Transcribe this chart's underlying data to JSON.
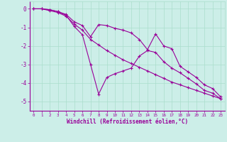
{
  "xlabel": "Windchill (Refroidissement éolien,°C)",
  "bg_color": "#cceee8",
  "grid_color": "#aaddcc",
  "line_color": "#990099",
  "xlim": [
    -0.5,
    23.5
  ],
  "ylim": [
    -5.5,
    0.4
  ],
  "xticks": [
    0,
    1,
    2,
    3,
    4,
    5,
    6,
    7,
    8,
    9,
    10,
    11,
    12,
    13,
    14,
    15,
    16,
    17,
    18,
    19,
    20,
    21,
    22,
    23
  ],
  "yticks": [
    0,
    -1,
    -2,
    -3,
    -4,
    -5
  ],
  "line1_x": [
    0,
    1,
    2,
    3,
    4,
    5,
    6,
    7,
    8,
    9,
    10,
    11,
    12,
    13,
    14,
    15,
    16,
    17,
    18,
    19,
    20,
    21,
    22,
    23
  ],
  "line1_y": [
    0.0,
    0.0,
    -0.05,
    -0.15,
    -0.3,
    -0.7,
    -0.9,
    -1.5,
    -0.85,
    -0.9,
    -1.05,
    -1.15,
    -1.3,
    -1.65,
    -2.2,
    -1.35,
    -2.0,
    -2.15,
    -3.1,
    -3.4,
    -3.7,
    -4.1,
    -4.3,
    -4.75
  ],
  "line2_x": [
    0,
    1,
    2,
    3,
    4,
    5,
    6,
    7,
    8,
    9,
    10,
    11,
    12,
    13,
    14,
    15,
    16,
    17,
    18,
    19,
    20,
    21,
    22,
    23
  ],
  "line2_y": [
    0.0,
    0.0,
    -0.05,
    -0.15,
    -0.35,
    -0.95,
    -1.4,
    -3.0,
    -4.6,
    -3.7,
    -3.5,
    -3.35,
    -3.2,
    -2.55,
    -2.25,
    -2.35,
    -2.85,
    -3.2,
    -3.45,
    -3.75,
    -4.05,
    -4.4,
    -4.55,
    -4.85
  ],
  "line3_x": [
    0,
    1,
    2,
    3,
    4,
    5,
    6,
    7,
    8,
    9,
    10,
    11,
    12,
    13,
    14,
    15,
    16,
    17,
    18,
    19,
    20,
    21,
    22,
    23
  ],
  "line3_y": [
    0.0,
    0.0,
    -0.1,
    -0.2,
    -0.4,
    -0.82,
    -1.15,
    -1.65,
    -1.95,
    -2.25,
    -2.5,
    -2.75,
    -2.95,
    -3.15,
    -3.35,
    -3.55,
    -3.75,
    -3.95,
    -4.1,
    -4.25,
    -4.4,
    -4.55,
    -4.7,
    -4.85
  ]
}
